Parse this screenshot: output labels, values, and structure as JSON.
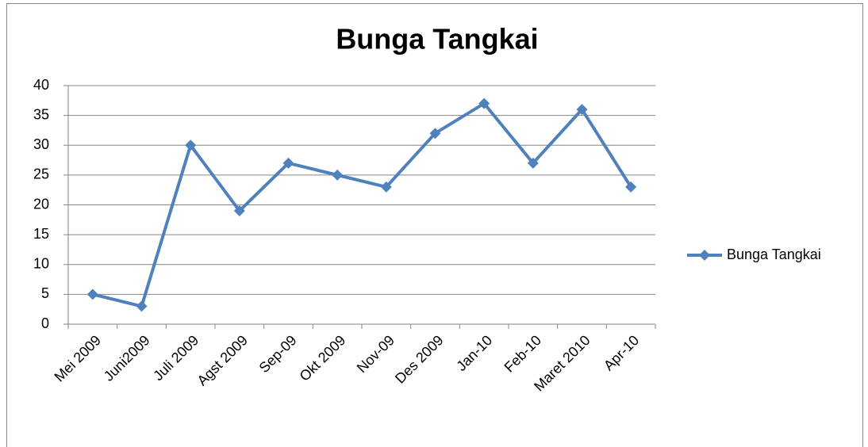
{
  "chart_data": {
    "type": "line",
    "title": "Bunga Tangkai",
    "categories": [
      "Mei 2009",
      "Juni2009",
      "Juli 2009",
      "Agst 2009",
      "Sep-09",
      "Okt 2009",
      "Nov-09",
      "Des 2009",
      "Jan-10",
      "Feb-10",
      "Maret 2010",
      "Apr-10"
    ],
    "series": [
      {
        "name": "Bunga Tangkai",
        "color": "#4f81bd",
        "values": [
          5,
          3,
          30,
          19,
          27,
          25,
          23,
          32,
          37,
          27,
          36,
          23
        ]
      }
    ],
    "ylim": [
      0,
      40
    ],
    "yticks": [
      0,
      5,
      10,
      15,
      20,
      25,
      30,
      35,
      40
    ],
    "grid": true,
    "legend": "right"
  }
}
